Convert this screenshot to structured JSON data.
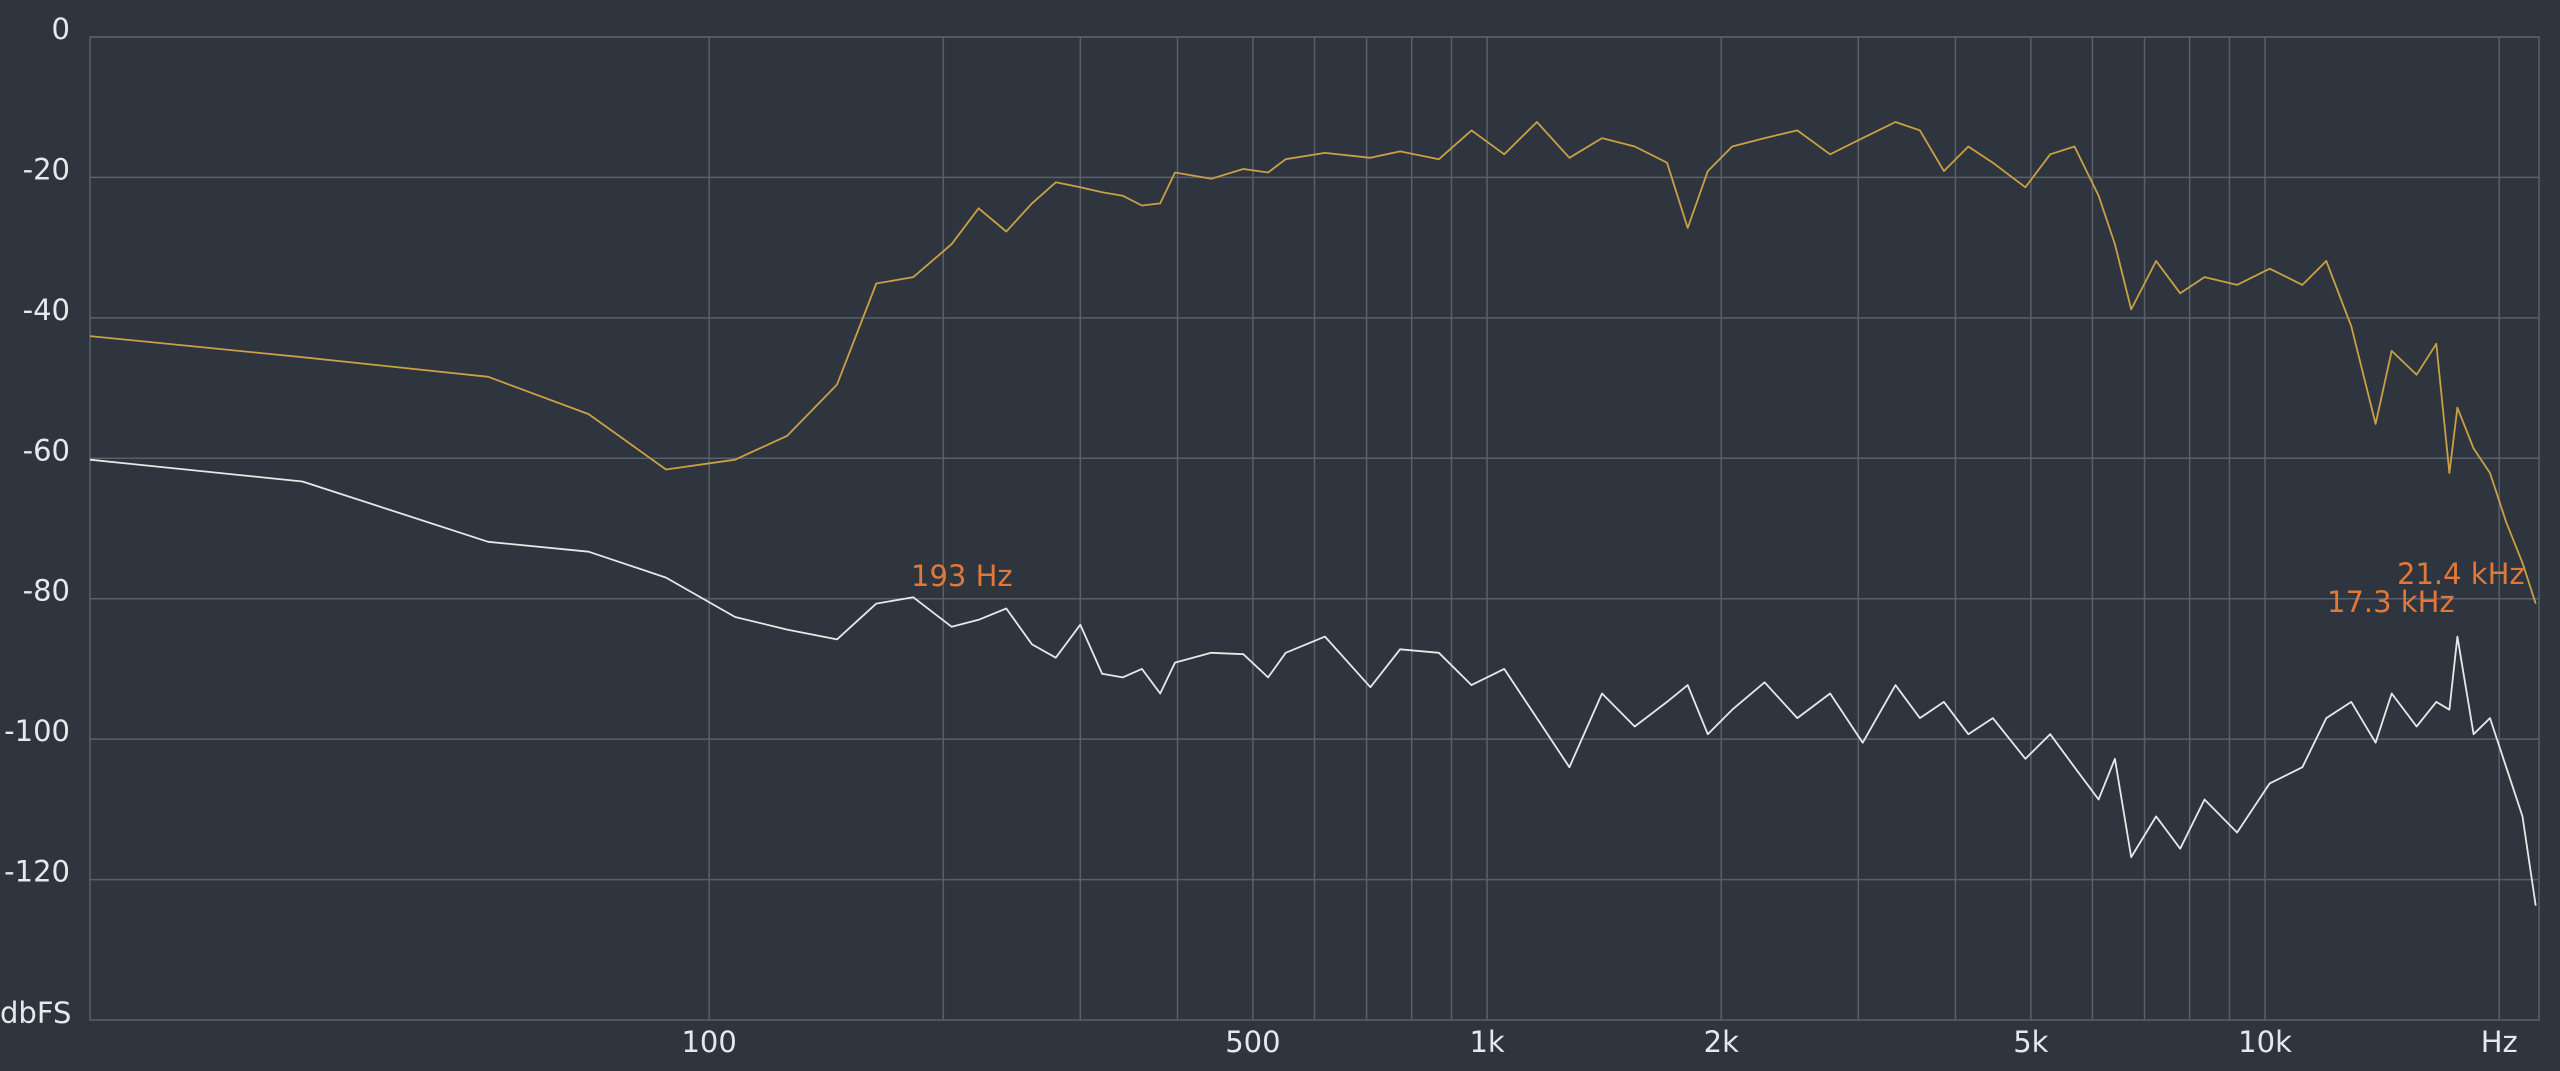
{
  "chart_data": {
    "type": "line",
    "y_axis_label": "dbFS",
    "log_x": true,
    "grid": true,
    "xlim": [
      16,
      22500
    ],
    "ylim": [
      -140,
      0
    ],
    "yticks": [
      0,
      -20,
      -40,
      -60,
      -80,
      -100,
      -120
    ],
    "xticks": [
      100,
      500,
      {
        "value": 1000,
        "label": "1k"
      },
      {
        "value": 2000,
        "label": "2k"
      },
      {
        "value": 5000,
        "label": "5k"
      },
      {
        "value": 10000,
        "label": "10k"
      },
      {
        "value": 20000,
        "label": "Hz"
      }
    ],
    "minor_xticks": [
      200,
      300,
      400,
      600,
      700,
      800,
      900,
      3000,
      4000,
      6000,
      7000,
      8000,
      9000
    ],
    "annotations": [
      "193 Hz",
      "21.4  kHz",
      "17.3  kHz"
    ],
    "annotation_color": "#e0783a",
    "x": [
      16,
      30,
      52,
      70,
      88,
      108,
      126,
      146,
      164,
      183,
      205,
      222,
      241,
      260,
      279,
      300,
      320,
      340,
      360,
      380,
      397,
      442,
      486,
      523,
      551,
      619,
      708,
      773,
      867,
      955,
      1052,
      1159,
      1276,
      1405,
      1548,
      1703,
      1811,
      1922,
      2066,
      2274,
      2505,
      2760,
      3040,
      3350,
      3600,
      3866,
      4155,
      4467,
      4920,
      5295,
      5690,
      6110,
      6413,
      6730,
      7244,
      7780,
      8360,
      9206,
      10140,
      11170,
      11990,
      12910,
      13870,
      14550,
      15660,
      16600,
      17260,
      17670,
      18540,
      19460,
      20420,
      21430,
      22280
    ],
    "series": [
      {
        "color": "#c9a046",
        "values": [
          -42.6,
          -45.6,
          -48.4,
          -53.7,
          -61.6,
          -60.2,
          -56.8,
          -49.5,
          -35.1,
          -34.2,
          -29.5,
          -24.4,
          -27.7,
          -23.7,
          -20.7,
          -21.4,
          -22.1,
          -22.6,
          -24,
          -23.7,
          -19.3,
          -20.2,
          -18.8,
          -19.3,
          -17.4,
          -16.5,
          -17.2,
          -16.3,
          -17.4,
          -13.3,
          -16.7,
          -12.1,
          -17.2,
          -14.4,
          -15.6,
          -17.9,
          -27.2,
          -19.1,
          -15.6,
          -14.4,
          -13.3,
          -16.7,
          -14.4,
          -12.1,
          -13.3,
          -19.1,
          -15.6,
          -17.9,
          -21.4,
          -16.7,
          -15.6,
          -22.6,
          -29.5,
          -38.8,
          -31.9,
          -36.5,
          -34.2,
          -35.3,
          -33,
          -35.3,
          -31.9,
          -41.2,
          -55.1,
          -44.7,
          -48.1,
          -43.7,
          -62.1,
          -52.8,
          -58.6,
          -62.1,
          -69.1,
          -74.9,
          -80.7
        ]
      },
      {
        "color": "#e8e8e8",
        "values": [
          -60.2,
          -63.3,
          -71.9,
          -73.3,
          -77,
          -82.6,
          -84.4,
          -85.8,
          -80.7,
          -79.8,
          -84,
          -83,
          -81.4,
          -86.5,
          -88.4,
          -83.7,
          -90.7,
          -91.2,
          -90,
          -93.5,
          -89.1,
          -87.7,
          -87.9,
          -91.2,
          -87.7,
          -85.4,
          -92.6,
          -87.2,
          -87.7,
          -92.3,
          -90,
          -97,
          -104,
          -93.5,
          -98.2,
          -94.7,
          -92.3,
          -99.3,
          -95.8,
          -91.9,
          -97,
          -93.5,
          -100.5,
          -92.3,
          -97,
          -94.7,
          -99.3,
          -97,
          -102.8,
          -99.3,
          -104,
          -108.6,
          -102.8,
          -116.8,
          -111,
          -115.6,
          -108.6,
          -113.3,
          -106.3,
          -104,
          -97,
          -94.7,
          -100.5,
          -93.5,
          -98.2,
          -94.7,
          -95.8,
          -85.4,
          -99.3,
          -97,
          -104,
          -111,
          -123.7
        ]
      }
    ]
  }
}
